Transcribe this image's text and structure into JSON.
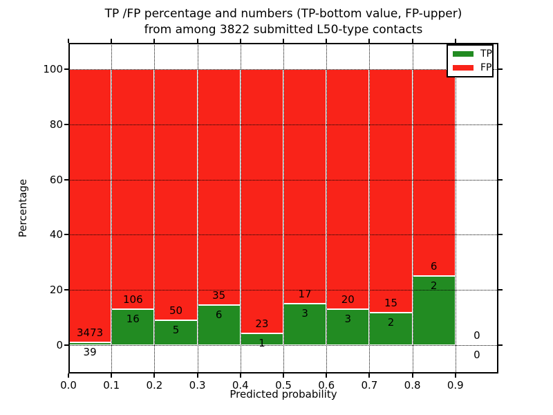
{
  "figure": {
    "background": "#ffffff"
  },
  "chart_data": {
    "type": "bar",
    "stacked": true,
    "normalized": "each bar totals 100%",
    "title_lines": [
      "TP /FP percentage and numbers (TP-bottom value, FP-upper)",
      "from among 3822 submitted L50-type contacts"
    ],
    "xlabel": "Predicted probability",
    "ylabel": "Percentage",
    "total_submitted": 3822,
    "bin_width": 0.1,
    "bin_starts": [
      0.0,
      0.1,
      0.2,
      0.3,
      0.4,
      0.5,
      0.6,
      0.7,
      0.8,
      0.9
    ],
    "series": [
      {
        "name": "TP",
        "color": "#228b22",
        "counts": [
          39,
          16,
          5,
          6,
          1,
          3,
          3,
          2,
          2,
          0
        ]
      },
      {
        "name": "FP",
        "color": "#f92319",
        "counts": [
          3473,
          106,
          50,
          35,
          23,
          17,
          20,
          15,
          6,
          0
        ]
      }
    ],
    "tp_percent_of_bin": [
      1.11,
      13.11,
      9.09,
      14.63,
      4.17,
      15.0,
      13.04,
      11.76,
      25.0,
      0.0
    ],
    "bar_edge_color": "#ffffff",
    "xticks": [
      "0.0",
      "0.1",
      "0.2",
      "0.3",
      "0.4",
      "0.5",
      "0.6",
      "0.7",
      "0.8",
      "0.9"
    ],
    "ytick_values": [
      0,
      20,
      40,
      60,
      80,
      100
    ],
    "ytick_labels": [
      "0",
      "20",
      "40",
      "60",
      "80",
      "100"
    ],
    "xlim": [
      0.0,
      1.0
    ],
    "ylim": [
      -10.3,
      109.6
    ],
    "grid": "dotted, drawn above bars",
    "legend": {
      "position": "upper right",
      "entries": [
        {
          "label": "TP",
          "color": "#228b22"
        },
        {
          "label": "FP",
          "color": "#f92319"
        }
      ]
    }
  }
}
